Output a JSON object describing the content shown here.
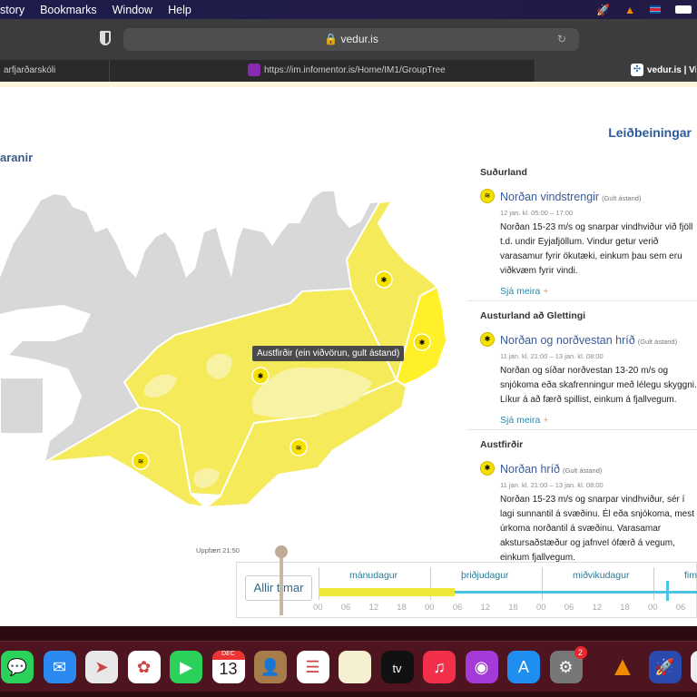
{
  "menubar": {
    "items": [
      "story",
      "Bookmarks",
      "Window",
      "Help"
    ],
    "icons": [
      "rocket-icon",
      "vlc-icon",
      "iceland-flag-icon",
      "battery-icon"
    ]
  },
  "browser": {
    "url": "vedur.is",
    "tabs": [
      {
        "label": "arfjarðarskóli"
      },
      {
        "label": "https://im.infomentor.is/Home/IM1/GroupTree"
      },
      {
        "label": "vedur.is | Vi"
      }
    ]
  },
  "page": {
    "guide_link": "Leiðbeiningar",
    "heading": "aranir",
    "tooltip": "Austfirðir (ein viðvörun, gult ástand)",
    "updated": "Uppfært 21:50",
    "colors": {
      "yellow_warning": "#f5ea5a",
      "no_warning": "#d8d8d8",
      "link": "#3b5a9a"
    },
    "regions": [
      {
        "name": "Suðurland",
        "title": "Norðan vindstrengir",
        "level": "(Gult ástand)",
        "time": "12 jan. kl. 05:00 – 17:00",
        "lines": [
          "Norðan 15-23 m/s og snarpar vindhviður við fjöll",
          "t.d. undir Eyjafjöllum. Vindur getur verið",
          "varasamur fyrir ökutæki, einkum þau sem eru",
          "viðkvæm fyrir vindi."
        ],
        "more": "Sjá meira",
        "icon": "wind-icon"
      },
      {
        "name": "Austurland að Glettingi",
        "title": "Norðan og norðvestan hríð",
        "level": "(Gult ástand)",
        "time": "11 jan. kl. 21:00 – 13 jan. kl. 08:00",
        "lines": [
          "Norðan og síðar norðvestan 13-20 m/s og",
          "snjókoma eða skafrenningur með lélegu skyggni.",
          "Líkur á að færð spillist, einkum á fjallvegum."
        ],
        "more": "Sjá meira",
        "icon": "wind-snow-icon"
      },
      {
        "name": "Austfirðir",
        "title": "Norðan hríð",
        "level": "(Gult ástand)",
        "time": "11 jan. kl. 21:00 – 13 jan. kl. 08:00",
        "lines": [
          "Norðan 15-23 m/s og snarpar vindhviður, sér í",
          "lagi sunnantil á svæðinu. Él eða snjókoma, mest",
          "úrkoma norðantil á svæðinu. Varasamar",
          "akstursaðstæður og jafnvel ófærð á vegum,",
          "einkum fjallvegum."
        ],
        "icon": "wind-snow-icon"
      }
    ],
    "timeline": {
      "all_button": "Allir tímar",
      "days": [
        "mánudagur",
        "þriðjudagur",
        "miðvikudagur",
        "fim"
      ],
      "hours": [
        "00",
        "06",
        "12",
        "18",
        "00",
        "06",
        "12",
        "18",
        "00",
        "06",
        "12",
        "18",
        "00",
        "06"
      ],
      "warning_span_fraction": 0.32
    }
  },
  "dock": {
    "apps": [
      {
        "name": "Messages"
      },
      {
        "name": "Mail"
      },
      {
        "name": "Maps"
      },
      {
        "name": "Photos"
      },
      {
        "name": "FaceTime"
      },
      {
        "name": "Calendar",
        "month": "DEC",
        "day": "13"
      },
      {
        "name": "Contacts"
      },
      {
        "name": "Reminders"
      },
      {
        "name": "Notes"
      },
      {
        "name": "TV",
        "label": "tv"
      },
      {
        "name": "Music"
      },
      {
        "name": "Podcasts"
      },
      {
        "name": "App Store"
      },
      {
        "name": "System Preferences",
        "badge": "2"
      },
      {
        "name": "VLC"
      },
      {
        "name": "RocketSim"
      },
      {
        "name": "Other"
      }
    ]
  }
}
